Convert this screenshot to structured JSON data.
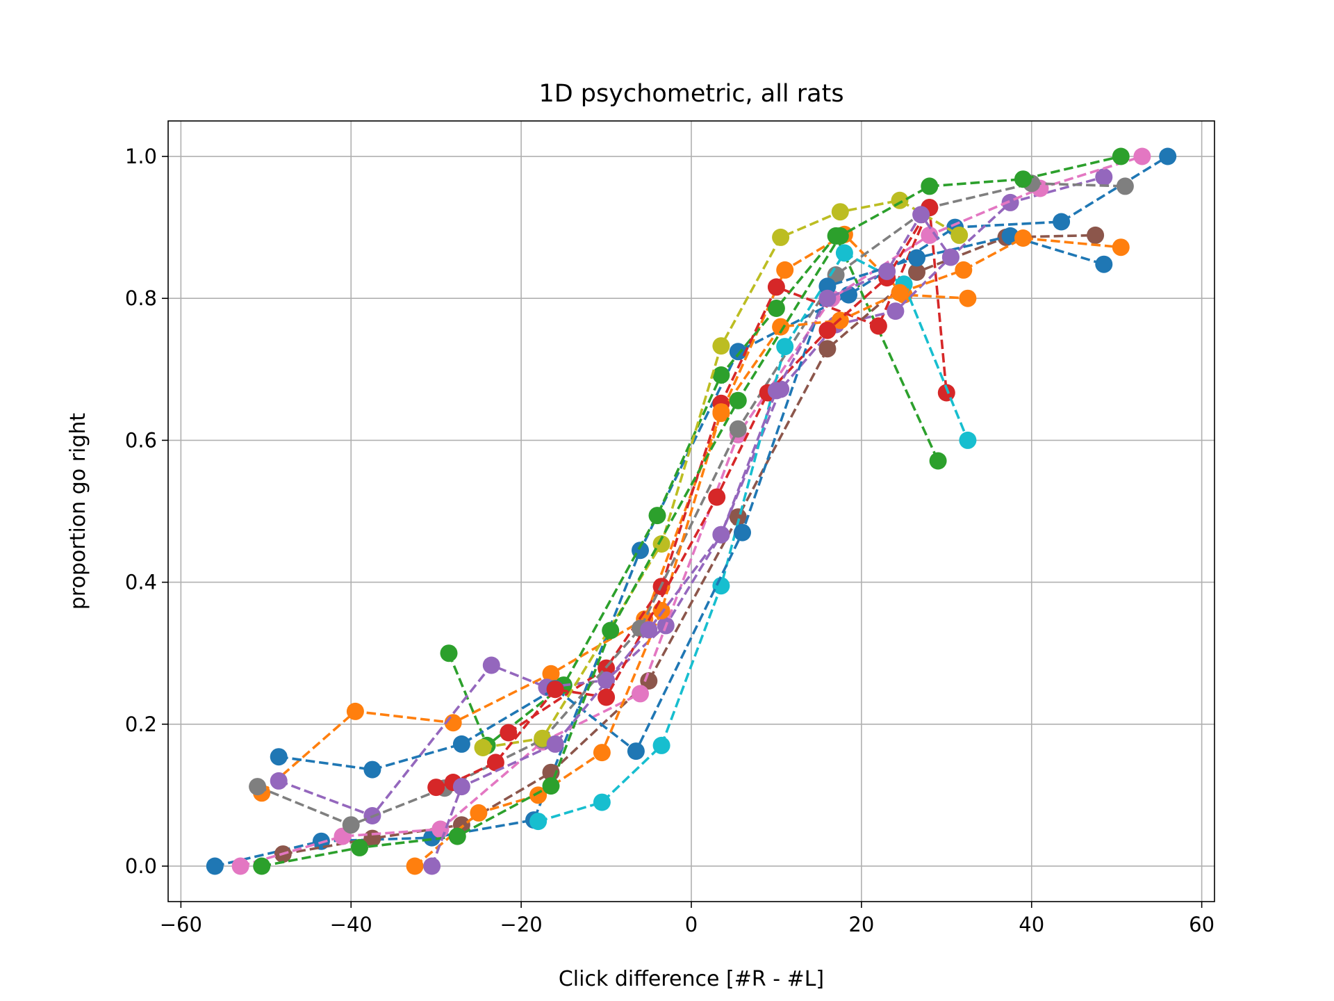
{
  "chart_data": {
    "type": "line",
    "title": "1D psychometric, all rats",
    "xlabel": "Click difference [#R - #L]",
    "ylabel": "proportion go right",
    "xlim": [
      -61.5,
      61.5
    ],
    "ylim": [
      -0.05,
      1.05
    ],
    "xticks": [
      -60,
      -40,
      -20,
      0,
      20,
      40,
      60
    ],
    "yticks": [
      0.0,
      0.2,
      0.4,
      0.6,
      0.8,
      1.0
    ],
    "xtick_labels": [
      "−60",
      "−40",
      "−20",
      "0",
      "20",
      "40",
      "60"
    ],
    "ytick_labels": [
      "0.0",
      "0.2",
      "0.4",
      "0.6",
      "0.8",
      "1.0"
    ],
    "grid": true,
    "line_style": "dashed",
    "marker": "circle",
    "series": [
      {
        "color": "#1f77b4",
        "points": [
          [
            -56,
            0.0
          ],
          [
            -43.5,
            0.035
          ],
          [
            -30.5,
            0.04
          ],
          [
            -18.5,
            0.065
          ],
          [
            -6,
            0.445
          ],
          [
            5.5,
            0.725
          ],
          [
            18.5,
            0.805
          ],
          [
            31,
            0.9
          ],
          [
            43.5,
            0.908
          ],
          [
            56,
            1.0
          ]
        ]
      },
      {
        "color": "#ff7f0e",
        "points": [
          [
            -50.5,
            0.103
          ],
          [
            -39.5,
            0.218
          ],
          [
            -28,
            0.202
          ],
          [
            -16.5,
            0.271
          ],
          [
            -5.5,
            0.348
          ],
          [
            3.5,
            0.638
          ],
          [
            11,
            0.84
          ],
          [
            18,
            0.89
          ],
          [
            25,
            0.805
          ],
          [
            32.5,
            0.8
          ]
        ]
      },
      {
        "color": "#2ca02c",
        "points": [
          [
            -28.5,
            0.3
          ],
          [
            -24,
            0.17
          ],
          [
            -15,
            0.255
          ],
          [
            -4,
            0.494
          ],
          [
            3.5,
            0.692
          ],
          [
            10,
            0.786
          ],
          [
            17,
            0.888
          ],
          [
            29,
            0.571
          ]
        ]
      },
      {
        "color": "#d62728",
        "points": [
          [
            -21.5,
            0.188
          ],
          [
            -10,
            0.279
          ],
          [
            -3.5,
            0.394
          ],
          [
            3.5,
            0.652
          ],
          [
            10,
            0.816
          ],
          [
            22,
            0.761
          ],
          [
            28,
            0.928
          ],
          [
            30,
            0.667
          ]
        ]
      },
      {
        "color": "#9467bd",
        "points": [
          [
            -48.5,
            0.12
          ],
          [
            -37.5,
            0.071
          ],
          [
            -23.5,
            0.283
          ],
          [
            -17,
            0.252
          ],
          [
            -10,
            0.262
          ],
          [
            -3,
            0.339
          ],
          [
            3.5,
            0.467
          ],
          [
            10.5,
            0.672
          ],
          [
            17,
            0.763
          ],
          [
            24,
            0.782
          ],
          [
            30.5,
            0.858
          ],
          [
            37.5,
            0.935
          ],
          [
            48.5,
            0.971
          ]
        ]
      },
      {
        "color": "#8c564b",
        "points": [
          [
            -48,
            0.017
          ],
          [
            -37.5,
            0.039
          ],
          [
            -27,
            0.058
          ],
          [
            -16.5,
            0.132
          ],
          [
            -5,
            0.261
          ],
          [
            5.5,
            0.492
          ],
          [
            16,
            0.729
          ],
          [
            26.5,
            0.837
          ],
          [
            37,
            0.886
          ],
          [
            47.5,
            0.889
          ]
        ]
      },
      {
        "color": "#e377c2",
        "points": [
          [
            -53,
            0.0
          ],
          [
            -41,
            0.042
          ],
          [
            -29.5,
            0.052
          ],
          [
            -17.5,
            0.175
          ],
          [
            -6,
            0.243
          ],
          [
            5.5,
            0.608
          ],
          [
            16.5,
            0.8
          ],
          [
            28,
            0.889
          ],
          [
            41,
            0.955
          ],
          [
            53,
            1.0
          ]
        ]
      },
      {
        "color": "#7f7f7f",
        "points": [
          [
            -51,
            0.112
          ],
          [
            -40,
            0.058
          ],
          [
            -29,
            0.11
          ],
          [
            -17.5,
            0.178
          ],
          [
            -6,
            0.335
          ],
          [
            5.5,
            0.616
          ],
          [
            17,
            0.833
          ],
          [
            28,
            0.928
          ],
          [
            40,
            0.962
          ],
          [
            51,
            0.958
          ]
        ]
      },
      {
        "color": "#bcbd22",
        "points": [
          [
            -24.5,
            0.167
          ],
          [
            -17.5,
            0.18
          ],
          [
            -3.5,
            0.454
          ],
          [
            3.5,
            0.733
          ],
          [
            10.5,
            0.886
          ],
          [
            17.5,
            0.922
          ],
          [
            24.5,
            0.938
          ],
          [
            31.5,
            0.889
          ]
        ]
      },
      {
        "color": "#17becf",
        "points": [
          [
            -18,
            0.063
          ],
          [
            -10.5,
            0.09
          ],
          [
            -3.5,
            0.17
          ],
          [
            3.5,
            0.395
          ],
          [
            11,
            0.732
          ],
          [
            18,
            0.864
          ],
          [
            25,
            0.82
          ],
          [
            32.5,
            0.6
          ]
        ]
      },
      {
        "color": "#1f77b4",
        "points": [
          [
            -48.5,
            0.154
          ],
          [
            -37.5,
            0.136
          ],
          [
            -27,
            0.172
          ],
          [
            -16,
            0.25
          ],
          [
            -6.5,
            0.162
          ],
          [
            6,
            0.47
          ],
          [
            16,
            0.817
          ],
          [
            26.5,
            0.857
          ],
          [
            37.5,
            0.888
          ],
          [
            48.5,
            0.848
          ]
        ]
      },
      {
        "color": "#ff7f0e",
        "points": [
          [
            -32.5,
            0.0
          ],
          [
            -25,
            0.075
          ],
          [
            -18,
            0.1
          ],
          [
            -10.5,
            0.16
          ],
          [
            -3.5,
            0.36
          ],
          [
            3.5,
            0.64
          ],
          [
            10.5,
            0.76
          ],
          [
            17.5,
            0.769
          ],
          [
            24.5,
            0.808
          ],
          [
            32,
            0.84
          ],
          [
            39,
            0.885
          ],
          [
            50.5,
            0.872
          ]
        ]
      },
      {
        "color": "#2ca02c",
        "points": [
          [
            -50.5,
            0.0
          ],
          [
            -39,
            0.026
          ],
          [
            -27.5,
            0.042
          ],
          [
            -16.5,
            0.113
          ],
          [
            -9.5,
            0.332
          ],
          [
            5.5,
            0.656
          ],
          [
            17.5,
            0.888
          ],
          [
            28,
            0.958
          ],
          [
            39,
            0.968
          ],
          [
            50.5,
            1.0
          ]
        ]
      },
      {
        "color": "#d62728",
        "points": [
          [
            -30,
            0.111
          ],
          [
            -28,
            0.118
          ],
          [
            -23,
            0.146
          ],
          [
            -16,
            0.249
          ],
          [
            -10,
            0.238
          ],
          [
            3,
            0.52
          ],
          [
            9,
            0.667
          ],
          [
            16,
            0.755
          ],
          [
            23,
            0.829
          ],
          [
            28,
            0.928
          ]
        ]
      },
      {
        "color": "#9467bd",
        "points": [
          [
            -30.5,
            0.0
          ],
          [
            -27,
            0.112
          ],
          [
            -16,
            0.172
          ],
          [
            -5,
            0.333
          ],
          [
            3.5,
            0.467
          ],
          [
            10,
            0.67
          ],
          [
            16,
            0.8
          ],
          [
            23,
            0.838
          ],
          [
            27,
            0.918
          ],
          [
            30.5,
            0.858
          ]
        ]
      }
    ]
  }
}
